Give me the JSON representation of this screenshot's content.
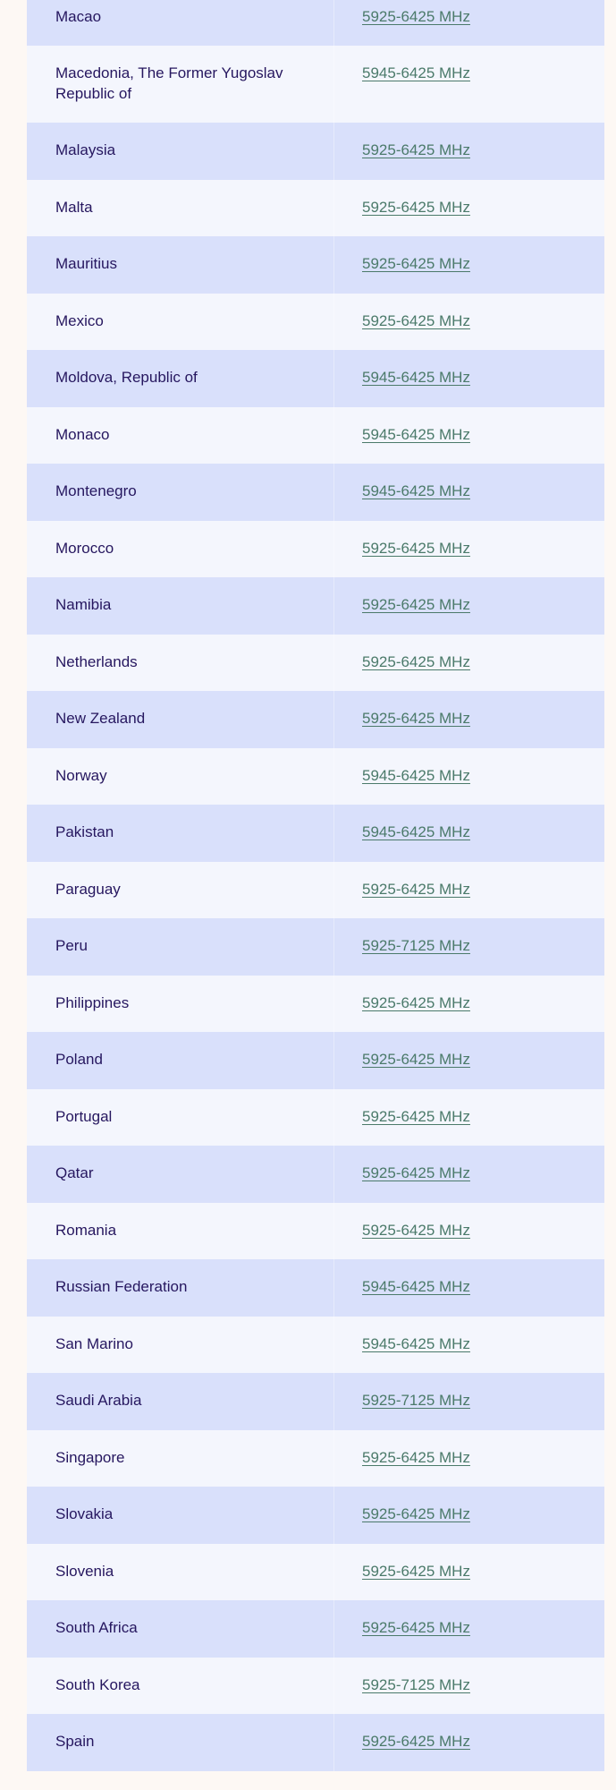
{
  "table": {
    "rows": [
      {
        "country": "",
        "band": ""
      },
      {
        "country": "Macao",
        "band": "5925-6425 MHz"
      },
      {
        "country": "Macedonia, The Former Yugoslav Republic of",
        "band": "5945-6425 MHz"
      },
      {
        "country": "Malaysia",
        "band": "5925-6425 MHz"
      },
      {
        "country": "Malta",
        "band": "5925-6425 MHz"
      },
      {
        "country": "Mauritius",
        "band": "5925-6425 MHz"
      },
      {
        "country": "Mexico",
        "band": "5925-6425 MHz"
      },
      {
        "country": "Moldova, Republic of",
        "band": "5945-6425 MHz"
      },
      {
        "country": "Monaco",
        "band": "5945-6425 MHz"
      },
      {
        "country": "Montenegro",
        "band": "5945-6425 MHz"
      },
      {
        "country": "Morocco",
        "band": "5925-6425 MHz"
      },
      {
        "country": "Namibia",
        "band": "5925-6425 MHz"
      },
      {
        "country": "Netherlands",
        "band": "5925-6425 MHz"
      },
      {
        "country": "New Zealand",
        "band": "5925-6425 MHz"
      },
      {
        "country": "Norway",
        "band": "5945-6425 MHz"
      },
      {
        "country": "Pakistan",
        "band": "5945-6425 MHz"
      },
      {
        "country": "Paraguay",
        "band": "5925-6425 MHz"
      },
      {
        "country": "Peru",
        "band": "5925-7125 MHz"
      },
      {
        "country": "Philippines",
        "band": "5925-6425 MHz"
      },
      {
        "country": "Poland",
        "band": "5925-6425 MHz"
      },
      {
        "country": "Portugal",
        "band": "5925-6425 MHz"
      },
      {
        "country": "Qatar",
        "band": "5925-6425 MHz"
      },
      {
        "country": "Romania",
        "band": "5925-6425 MHz"
      },
      {
        "country": "Russian Federation",
        "band": "5945-6425 MHz"
      },
      {
        "country": "San Marino",
        "band": "5945-6425 MHz"
      },
      {
        "country": "Saudi Arabia",
        "band": "5925-7125 MHz"
      },
      {
        "country": "Singapore",
        "band": "5925-6425 MHz"
      },
      {
        "country": "Slovakia",
        "band": "5925-6425 MHz"
      },
      {
        "country": "Slovenia",
        "band": "5925-6425 MHz"
      },
      {
        "country": "South Africa",
        "band": "5925-6425 MHz"
      },
      {
        "country": "South Korea",
        "band": "5925-7125 MHz"
      },
      {
        "country": "Spain",
        "band": "5925-6425 MHz"
      }
    ]
  },
  "colors": {
    "background": "#fdf8f4",
    "row_light": "#f4f6fd",
    "row_dark": "#d9e0fb",
    "country_text": "#26175f",
    "link": "#4b7a6a"
  }
}
